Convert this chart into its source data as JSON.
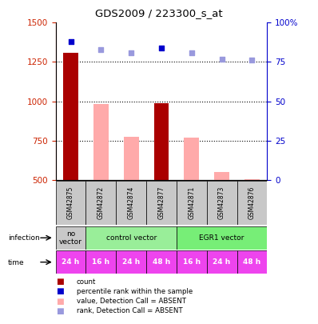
{
  "title": "GDS2009 / 223300_s_at",
  "samples": [
    "GSM42875",
    "GSM42872",
    "GSM42874",
    "GSM42877",
    "GSM42871",
    "GSM42873",
    "GSM42876"
  ],
  "count_values": [
    1310,
    null,
    null,
    990,
    null,
    null,
    null
  ],
  "count_absent_values": [
    null,
    980,
    775,
    null,
    770,
    550,
    505
  ],
  "rank_present_values": [
    88,
    null,
    null,
    84,
    null,
    null,
    null
  ],
  "rank_absent_values": [
    null,
    83,
    81,
    null,
    81,
    77,
    76
  ],
  "infection_groups": [
    {
      "label": "no\nvector",
      "start": 0,
      "end": 1
    },
    {
      "label": "control vector",
      "start": 1,
      "end": 4
    },
    {
      "label": "EGR1 vector",
      "start": 4,
      "end": 7
    }
  ],
  "infection_colors": [
    "#c8c8c8",
    "#99ee99",
    "#77ee77"
  ],
  "time_labels": [
    "24 h",
    "16 h",
    "24 h",
    "48 h",
    "16 h",
    "24 h",
    "48 h"
  ],
  "time_color": "#ee44ee",
  "ylim_left": [
    500,
    1500
  ],
  "ylim_right": [
    0,
    100
  ],
  "yticks_left": [
    500,
    750,
    1000,
    1250,
    1500
  ],
  "yticks_right": [
    0,
    25,
    50,
    75,
    100
  ],
  "left_axis_color": "#cc2200",
  "right_axis_color": "#0000cc",
  "bar_color_present": "#aa0000",
  "bar_color_absent": "#ffaaaa",
  "dot_color_present": "#0000cc",
  "dot_color_absent": "#9999dd",
  "sample_bg": "#c8c8c8",
  "legend_items": [
    {
      "color": "#aa0000",
      "marker": "sq",
      "label": "count"
    },
    {
      "color": "#0000cc",
      "marker": "sq",
      "label": "percentile rank within the sample"
    },
    {
      "color": "#ffaaaa",
      "marker": "sq",
      "label": "value, Detection Call = ABSENT"
    },
    {
      "color": "#9999dd",
      "marker": "sq",
      "label": "rank, Detection Call = ABSENT"
    }
  ]
}
